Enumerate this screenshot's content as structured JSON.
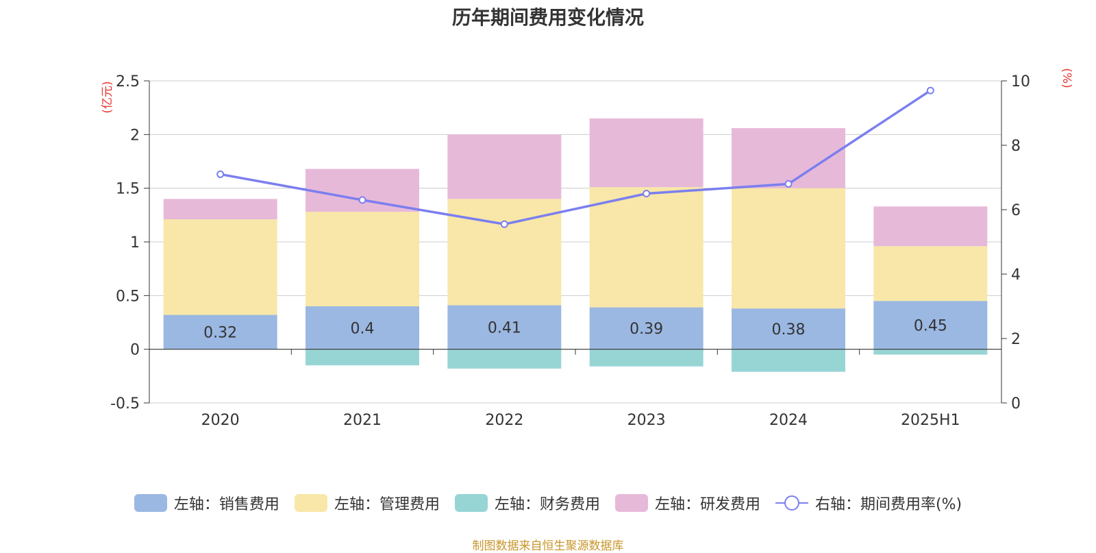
{
  "title": "历年期间费用变化情况",
  "source": "制图数据来自恒生聚源数据库",
  "colors": {
    "sales": "#9bb8e2",
    "admin": "#f8e7a8",
    "finance": "#97d5d5",
    "rnd": "#e7b9d9",
    "rate": "#7b7fee",
    "axis_unit": "#e8352e"
  },
  "chart_data": {
    "type": "bar",
    "stacked": true,
    "categories": [
      "2020",
      "2021",
      "2022",
      "2023",
      "2024",
      "2025H1"
    ],
    "left_axis": {
      "unit": "(亿元)",
      "ylim": [
        -0.5,
        2.5
      ],
      "ticks": [
        -0.5,
        0,
        0.5,
        1,
        1.5,
        2,
        2.5
      ],
      "tick_labels": [
        "-0.5",
        "0",
        "0.5",
        "1",
        "1.5",
        "2",
        "2.5"
      ]
    },
    "right_axis": {
      "unit": "(%)",
      "ylim": [
        0,
        10
      ],
      "ticks": [
        0,
        2,
        4,
        6,
        8,
        10
      ],
      "tick_labels": [
        "0",
        "2",
        "4",
        "6",
        "8",
        "10"
      ]
    },
    "series": [
      {
        "key": "sales",
        "name": "左轴：销售费用",
        "axis": "left",
        "values": [
          0.32,
          0.4,
          0.41,
          0.39,
          0.38,
          0.45
        ],
        "data_labels": [
          "0.32",
          "0.4",
          "0.41",
          "0.39",
          "0.38",
          "0.45"
        ]
      },
      {
        "key": "admin",
        "name": "左轴：管理费用",
        "axis": "left",
        "values": [
          0.89,
          0.88,
          0.99,
          1.12,
          1.12,
          0.51
        ]
      },
      {
        "key": "finance",
        "name": "左轴：财务费用",
        "axis": "left",
        "values": [
          0,
          -0.15,
          -0.18,
          -0.16,
          -0.21,
          -0.05
        ]
      },
      {
        "key": "rnd",
        "name": "左轴：研发费用",
        "axis": "left",
        "values": [
          0.19,
          0.4,
          0.6,
          0.64,
          0.56,
          0.37
        ]
      },
      {
        "key": "rate",
        "name": "右轴：期间费用率(%)",
        "axis": "right",
        "type": "line",
        "values": [
          7.1,
          6.3,
          5.55,
          6.5,
          6.8,
          9.7
        ]
      }
    ],
    "grid": true,
    "legend_position": "bottom"
  }
}
